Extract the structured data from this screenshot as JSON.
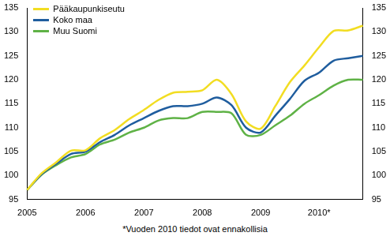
{
  "chart_data": {
    "type": "line",
    "note": "*Vuoden 2010 tiedot ovat ennakollisia",
    "categories": [
      "2005",
      null,
      null,
      null,
      "2006",
      null,
      null,
      null,
      "2007",
      null,
      null,
      null,
      "2008",
      null,
      null,
      null,
      "2009",
      null,
      null,
      null,
      "2010*",
      null,
      null,
      null
    ],
    "series": [
      {
        "name": "Pääkaupunkiseutu",
        "color": "#f2dd22",
        "values": [
          97,
          100.5,
          102.8,
          105.2,
          105.3,
          107.8,
          109.5,
          111.8,
          113.7,
          115.8,
          117.3,
          117.5,
          117.8,
          120,
          117,
          111.3,
          109.8,
          114.5,
          119.5,
          123,
          126.8,
          130.2,
          130.3,
          131.3
        ]
      },
      {
        "name": "Koko maa",
        "color": "#1f5d9e",
        "values": [
          97,
          100.3,
          102.5,
          104.5,
          105,
          107,
          108.5,
          110.5,
          112,
          113.5,
          114.5,
          114.5,
          115,
          116.3,
          114.7,
          110,
          109,
          112.5,
          116,
          119.8,
          121.5,
          124,
          124.5,
          125
        ]
      },
      {
        "name": "Muu Suomi",
        "color": "#5fb246",
        "values": [
          97,
          100.2,
          102.2,
          103.8,
          104.5,
          106.5,
          107.5,
          109,
          110,
          111.5,
          112,
          112,
          113.3,
          113.3,
          113,
          108.5,
          108.5,
          110.5,
          112.5,
          115,
          116.8,
          118.8,
          120,
          120
        ]
      }
    ],
    "ylim": [
      95,
      135
    ],
    "yticks": [
      95,
      100,
      105,
      110,
      115,
      120,
      125,
      130,
      135
    ],
    "grid": false,
    "legend": "top-left"
  }
}
